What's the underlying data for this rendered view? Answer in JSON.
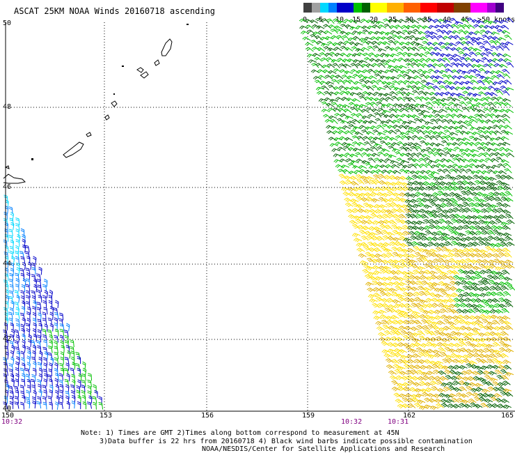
{
  "title": "ASCAT 25KM NOAA Winds 20160718 ascending",
  "legend": {
    "colors": [
      "#404040",
      "#a0a0a0",
      "#00d8ff",
      "#0080ff",
      "#0000c8",
      "#00c000",
      "#006000",
      "#ffff00",
      "#ffb000",
      "#ff6000",
      "#ff0000",
      "#c00000",
      "#804000",
      "#ff00ff",
      "#a000d0",
      "#400080"
    ],
    "labels": [
      "0",
      "5",
      "10",
      "15",
      "20",
      "25",
      "30",
      "35",
      "40",
      "45",
      ">50 knots"
    ]
  },
  "grid": {
    "lat_labels": [
      "50",
      "48",
      "46",
      "44",
      "42",
      "40"
    ],
    "lon_labels": [
      "150",
      "153",
      "156",
      "159",
      "162",
      "165"
    ]
  },
  "times": [
    "10:32",
    "10:32",
    "10:31"
  ],
  "notes": {
    "line1": "Note: 1) Times are GMT 2)Times along bottom correspond to measurement at 45N",
    "line2": "3)Data buffer is 22 hrs from 20160718 4) Black wind barbs indicate possible contamination",
    "line3": "NOAA/NESDIS/Center for Satellite Applications and Research"
  },
  "colors": {
    "cyan": "#00d8ff",
    "blue": "#0000c8",
    "mid_blue": "#0080ff",
    "green": "#00c000",
    "dark_green": "#006000",
    "yellow": "#ffe000",
    "gold": "#e0b000"
  }
}
